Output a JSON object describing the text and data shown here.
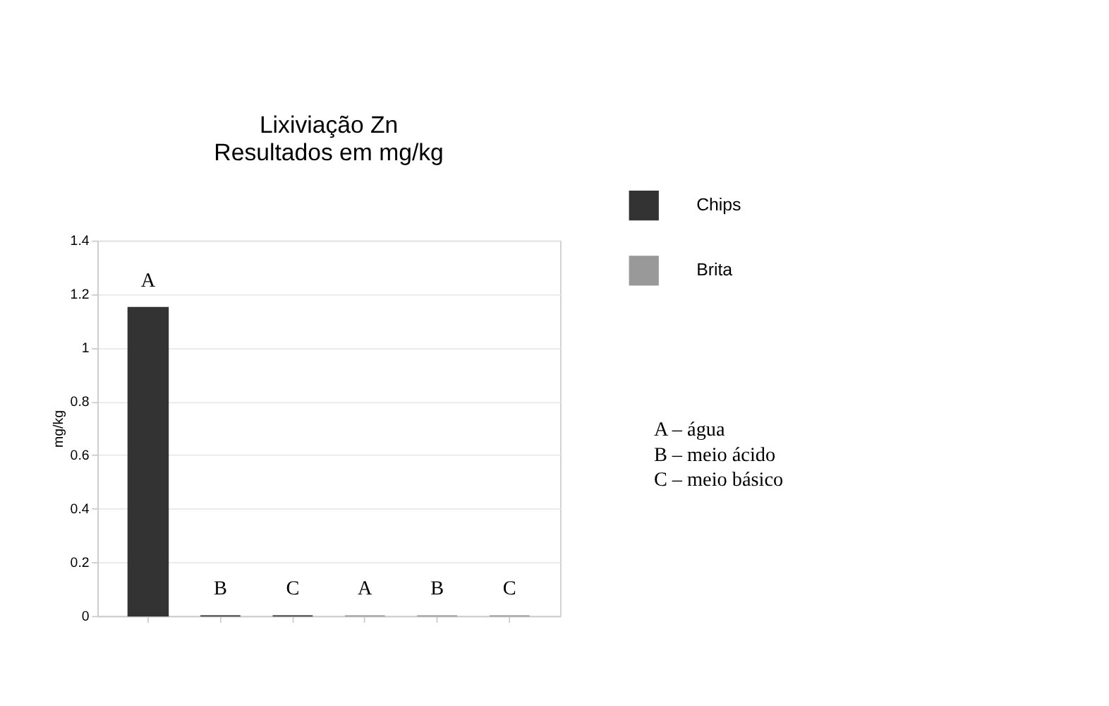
{
  "chart_data": {
    "type": "bar",
    "title": "Lixiviação Zn",
    "subtitle": "Resultados em mg/kg",
    "ylabel": "mg/kg",
    "categories": [
      null,
      null,
      null,
      null,
      null,
      null
    ],
    "series": [
      {
        "name": "Chips",
        "color": "#333333",
        "values": [
          1.15,
          0,
          0,
          null,
          null,
          null
        ],
        "value_labels": [
          "A",
          "B",
          "C",
          null,
          null,
          null
        ]
      },
      {
        "name": "Brita",
        "color": "#999999",
        "values": [
          null,
          null,
          null,
          0,
          0,
          0
        ],
        "value_labels": [
          null,
          null,
          null,
          "A",
          "B",
          "C"
        ]
      }
    ],
    "ylim": [
      0,
      1.4
    ],
    "yticks": [
      0,
      0.2,
      0.4,
      0.6,
      0.8,
      1,
      1.2,
      1.4
    ],
    "grid": "y",
    "legend": "top right",
    "annotations": [
      "A – água",
      "B – meio ácido",
      "C – meio básico"
    ]
  }
}
